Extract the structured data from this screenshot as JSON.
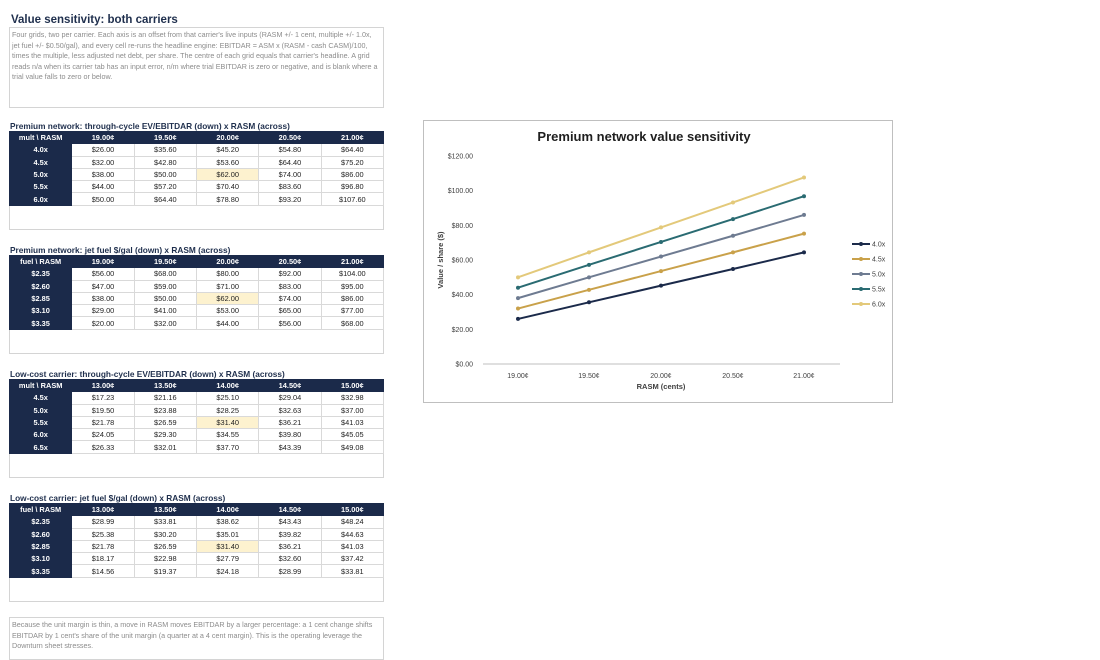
{
  "page": {
    "title": "Value sensitivity: both carriers",
    "top_note": "Four grids, two per carrier. Each axis is an offset from that carrier's live inputs (RASM +/- 1 cent, multiple +/- 1.0x, jet fuel +/- $0.50/gal), and every cell re-runs the headline engine: EBITDAR = ASM x (RASM - cash CASM)/100, times the multiple, less adjusted net debt, per share. The centre of each grid equals that carrier's headline. A grid reads n/a when its carrier tab has an input error, n/m where trial EBITDAR is zero or negative, and is blank where a trial value falls to zero or below.",
    "bottom_note": "Because the unit margin is thin, a move in RASM moves EBITDAR by a larger percentage: a 1 cent change shifts EBITDAR by 1 cent's share of the unit margin (a quarter at a 4 cent margin). This is the operating leverage the Downturn sheet stresses."
  },
  "grids": [
    {
      "title": "Premium network: through-cycle EV/EBITDAR (down) x RASM (across)",
      "corner": "mult \\ RASM",
      "cols": [
        "19.00¢",
        "19.50¢",
        "20.00¢",
        "20.50¢",
        "21.00¢"
      ],
      "rows": [
        {
          "label": "4.0x",
          "cells": [
            "$26.00",
            "$35.60",
            "$45.20",
            "$54.80",
            "$64.40"
          ]
        },
        {
          "label": "4.5x",
          "cells": [
            "$32.00",
            "$42.80",
            "$53.60",
            "$64.40",
            "$75.20"
          ]
        },
        {
          "label": "5.0x",
          "cells": [
            "$38.00",
            "$50.00",
            "$62.00",
            "$74.00",
            "$86.00"
          ]
        },
        {
          "label": "5.5x",
          "cells": [
            "$44.00",
            "$57.20",
            "$70.40",
            "$83.60",
            "$96.80"
          ]
        },
        {
          "label": "6.0x",
          "cells": [
            "$50.00",
            "$64.40",
            "$78.80",
            "$93.20",
            "$107.60"
          ]
        }
      ]
    },
    {
      "title": "Premium network: jet fuel $/gal (down) x RASM (across)",
      "corner": "fuel \\ RASM",
      "cols": [
        "19.00¢",
        "19.50¢",
        "20.00¢",
        "20.50¢",
        "21.00¢"
      ],
      "rows": [
        {
          "label": "$2.35",
          "cells": [
            "$56.00",
            "$68.00",
            "$80.00",
            "$92.00",
            "$104.00"
          ]
        },
        {
          "label": "$2.60",
          "cells": [
            "$47.00",
            "$59.00",
            "$71.00",
            "$83.00",
            "$95.00"
          ]
        },
        {
          "label": "$2.85",
          "cells": [
            "$38.00",
            "$50.00",
            "$62.00",
            "$74.00",
            "$86.00"
          ]
        },
        {
          "label": "$3.10",
          "cells": [
            "$29.00",
            "$41.00",
            "$53.00",
            "$65.00",
            "$77.00"
          ]
        },
        {
          "label": "$3.35",
          "cells": [
            "$20.00",
            "$32.00",
            "$44.00",
            "$56.00",
            "$68.00"
          ]
        }
      ]
    },
    {
      "title": "Low-cost carrier: through-cycle EV/EBITDAR (down) x RASM (across)",
      "corner": "mult \\ RASM",
      "cols": [
        "13.00¢",
        "13.50¢",
        "14.00¢",
        "14.50¢",
        "15.00¢"
      ],
      "rows": [
        {
          "label": "4.5x",
          "cells": [
            "$17.23",
            "$21.16",
            "$25.10",
            "$29.04",
            "$32.98"
          ]
        },
        {
          "label": "5.0x",
          "cells": [
            "$19.50",
            "$23.88",
            "$28.25",
            "$32.63",
            "$37.00"
          ]
        },
        {
          "label": "5.5x",
          "cells": [
            "$21.78",
            "$26.59",
            "$31.40",
            "$36.21",
            "$41.03"
          ]
        },
        {
          "label": "6.0x",
          "cells": [
            "$24.05",
            "$29.30",
            "$34.55",
            "$39.80",
            "$45.05"
          ]
        },
        {
          "label": "6.5x",
          "cells": [
            "$26.33",
            "$32.01",
            "$37.70",
            "$43.39",
            "$49.08"
          ]
        }
      ]
    },
    {
      "title": "Low-cost carrier: jet fuel $/gal (down) x RASM (across)",
      "corner": "fuel \\ RASM",
      "cols": [
        "13.00¢",
        "13.50¢",
        "14.00¢",
        "14.50¢",
        "15.00¢"
      ],
      "rows": [
        {
          "label": "$2.35",
          "cells": [
            "$28.99",
            "$33.81",
            "$38.62",
            "$43.43",
            "$48.24"
          ]
        },
        {
          "label": "$2.60",
          "cells": [
            "$25.38",
            "$30.20",
            "$35.01",
            "$39.82",
            "$44.63"
          ]
        },
        {
          "label": "$2.85",
          "cells": [
            "$21.78",
            "$26.59",
            "$31.40",
            "$36.21",
            "$41.03"
          ]
        },
        {
          "label": "$3.10",
          "cells": [
            "$18.17",
            "$22.98",
            "$27.79",
            "$32.60",
            "$37.42"
          ]
        },
        {
          "label": "$3.35",
          "cells": [
            "$14.56",
            "$19.37",
            "$24.18",
            "$28.99",
            "$33.81"
          ]
        }
      ]
    }
  ],
  "highlight_color": "#fdf2cf",
  "header_color": "#1b2a4a",
  "chart_data": {
    "type": "line",
    "title": "Premium network value sensitivity",
    "xlabel": "RASM (cents)",
    "ylabel": "Value / share ($)",
    "categories": [
      "19.00¢",
      "19.50¢",
      "20.00¢",
      "20.50¢",
      "21.00¢"
    ],
    "ylim": [
      0,
      120
    ],
    "yticks": [
      "$0.00",
      "$20.00",
      "$40.00",
      "$60.00",
      "$80.00",
      "$100.00",
      "$120.00"
    ],
    "grid": false,
    "legend": "right",
    "series": [
      {
        "name": "4.0x",
        "color": "#1b2a4a",
        "values": [
          26.0,
          35.6,
          45.2,
          54.8,
          64.4
        ]
      },
      {
        "name": "4.5x",
        "color": "#c9a14a",
        "values": [
          32.0,
          42.8,
          53.6,
          64.4,
          75.2
        ]
      },
      {
        "name": "5.0x",
        "color": "#6e7b91",
        "values": [
          38.0,
          50.0,
          62.0,
          74.0,
          86.0
        ]
      },
      {
        "name": "5.5x",
        "color": "#2a6b72",
        "values": [
          44.0,
          57.2,
          70.4,
          83.6,
          96.8
        ]
      },
      {
        "name": "6.0x",
        "color": "#e3c97a",
        "values": [
          50.0,
          64.4,
          78.8,
          93.2,
          107.6
        ]
      }
    ]
  }
}
